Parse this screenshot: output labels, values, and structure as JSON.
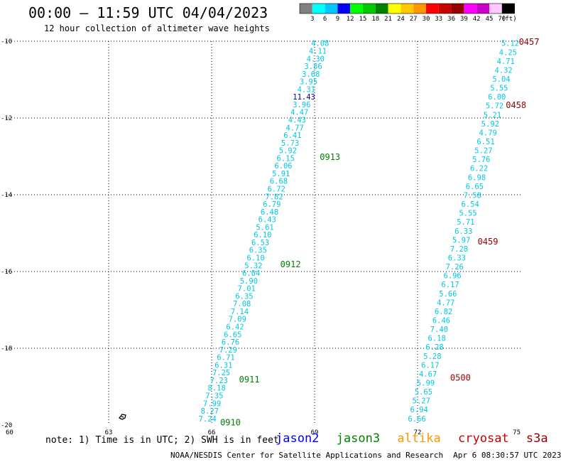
{
  "header": {
    "title": "00:00 — 11:59 UTC 04/04/2023",
    "subtitle": "12 hour collection of altimeter wave heights"
  },
  "colorbar": {
    "ticks": [
      "3",
      "6",
      "9",
      "12",
      "15",
      "18",
      "21",
      "24",
      "27",
      "30",
      "33",
      "36",
      "39",
      "42",
      "45",
      "70",
      "(ft)"
    ],
    "colors": [
      "#808080",
      "#00ffff",
      "#00c8ff",
      "#0000ff",
      "#00ff00",
      "#00c800",
      "#008000",
      "#ffff00",
      "#ffc800",
      "#ff9600",
      "#ff0000",
      "#c80000",
      "#960000",
      "#ff00ff",
      "#c800c8",
      "#ffc8ff",
      "#000000"
    ]
  },
  "footer": {
    "note": "note: 1) Time is in UTC; 2) SWH is in feet",
    "missions": [
      {
        "name": "jason2",
        "color": "#0000ff"
      },
      {
        "name": "jason3",
        "color": "#008000"
      },
      {
        "name": "altika",
        "color": "#ff9600"
      },
      {
        "name": "cryosat",
        "color": "#c80000"
      },
      {
        "name": "s3a",
        "color": "#960000"
      }
    ],
    "credit": "NOAA/NESDIS Center for Satellite Applications and Research",
    "timestamp": "Apr  6 08:30:57 UTC 2023"
  },
  "chart_data": {
    "type": "scatter",
    "title": "00:00 — 11:59 UTC 04/04/2023",
    "subtitle": "12 hour collection of altimeter wave heights",
    "xlim": [
      60,
      75
    ],
    "ylim": [
      -20,
      -10
    ],
    "x_ticks": [
      60,
      63,
      66,
      69,
      72,
      75
    ],
    "y_ticks": [
      -10,
      -12,
      -14,
      -16,
      -18,
      -20
    ],
    "grid": true,
    "value_colors": {
      "cyan": "#00c8e6",
      "darkblue": "#0000b4"
    },
    "tracks": [
      {
        "mission": "jason3",
        "color": "#00c8e6",
        "start": [
          65.88,
          -19.83
        ],
        "end": [
          69.16,
          -10.05
        ],
        "values": [
          "7.24",
          "8.27",
          "7.99",
          "7.35",
          "8.18",
          "7.23",
          "7.25",
          "6.31",
          "6.71",
          "7.29",
          "6.76",
          "6.65",
          "6.42",
          "7.09",
          "7.14",
          "7.08",
          "6.35",
          "7.01",
          "5.90",
          "6.04",
          "5.32",
          "6.10",
          "6.35",
          "6.53",
          "6.10",
          "5.61",
          "6.43",
          "6.48",
          "6.79",
          "7.82",
          "6.72",
          "6.68",
          "5.91",
          "6.06",
          "6.15",
          "5.92",
          "5.73",
          "6.41",
          "4.77",
          "4.43",
          "4.47",
          "3.96",
          "11.43",
          "4.31",
          "3.95",
          "3.68",
          "3.86",
          "4.30",
          "4.11",
          "4.08"
        ],
        "highlight_values": [
          "11.43"
        ],
        "time_labels": [
          {
            "text": "0910",
            "lon": 66.25,
            "lat": -19.92
          },
          {
            "text": "0911",
            "lon": 66.8,
            "lat": -18.8
          },
          {
            "text": "0912",
            "lon": 68.0,
            "lat": -15.8
          },
          {
            "text": "0913",
            "lon": 69.15,
            "lat": -13.0
          }
        ]
      },
      {
        "mission": "s3a",
        "color": "#00c8e6",
        "start": [
          71.98,
          -19.83
        ],
        "end": [
          74.7,
          -10.05
        ],
        "values": [
          "6.66",
          "6.94",
          "5.27",
          "5.65",
          "5.99",
          "4.67",
          "6.17",
          "5.28",
          "6.28",
          "6.18",
          "7.40",
          "6.46",
          "6.82",
          "4.77",
          "5.66",
          "6.17",
          "6.96",
          "7.26",
          "6.33",
          "7.28",
          "5.97",
          "6.33",
          "5.71",
          "5.55",
          "6.54",
          "7.58",
          "6.65",
          "6.98",
          "6.22",
          "5.76",
          "5.27",
          "6.51",
          "4.79",
          "5.92",
          "5.21",
          "5.72",
          "6.00",
          "5.55",
          "5.04",
          "4.32",
          "4.71",
          "4.25",
          "5.12"
        ],
        "time_labels": [
          {
            "text": "0500",
            "lon": 72.95,
            "lat": -18.75
          },
          {
            "text": "0459",
            "lon": 73.75,
            "lat": -15.2
          },
          {
            "text": "0458",
            "lon": 74.57,
            "lat": -11.65
          },
          {
            "text": "0457",
            "lon": 74.95,
            "lat": -10.0
          }
        ]
      }
    ]
  }
}
